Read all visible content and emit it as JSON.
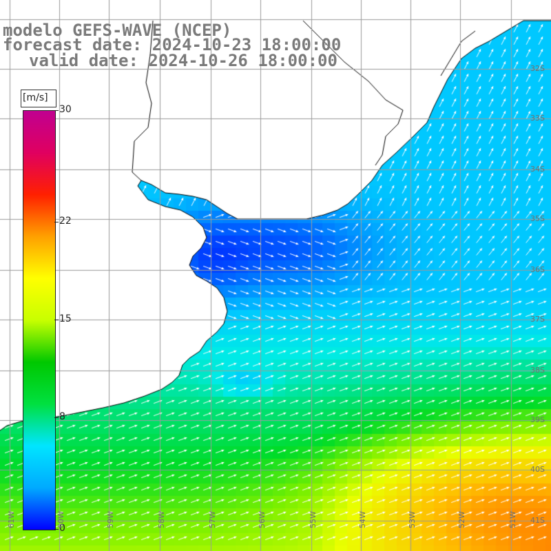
{
  "header": {
    "model_title": "modelo GEFS-WAVE (NCEP)",
    "forecast_date": "forecast date: 2024-10-23 18:00:00",
    "valid_date": "valid date: 2024-10-26 18:00:00"
  },
  "colorbar": {
    "unit": "[m/s]",
    "ticks": [
      "30",
      "22",
      "15",
      "8",
      "0"
    ],
    "tick_values": [
      30,
      22,
      15,
      8,
      0
    ],
    "colors": [
      "#0000ff",
      "#00aaff",
      "#00e5ff",
      "#00e040",
      "#00c800",
      "#c8ff00",
      "#ffff00",
      "#ffa000",
      "#ff2000",
      "#e00060",
      "#c00090"
    ]
  },
  "map": {
    "lat_labels": [
      "32S",
      "33S",
      "34S",
      "35S",
      "36S",
      "37S",
      "38S",
      "39S",
      "40S",
      "41S"
    ],
    "lon_labels": [
      "61W",
      "60W",
      "59W",
      "58W",
      "57W",
      "56W",
      "55W",
      "54W",
      "53W",
      "52W",
      "51W"
    ],
    "colors": {
      "land": "#ffffff",
      "coastline": "#000000",
      "grid": "#9a9a9a",
      "arrows": "#ffffff",
      "label": "#707070"
    }
  }
}
